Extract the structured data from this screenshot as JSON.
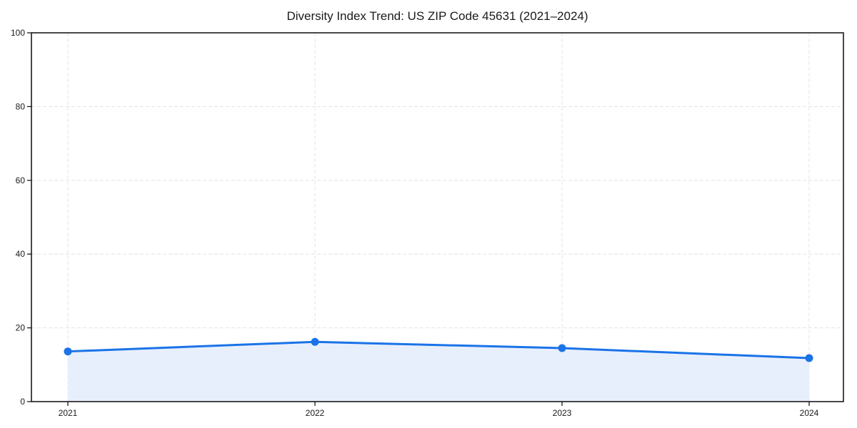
{
  "page": {
    "background": "#ffffff"
  },
  "chart_data": {
    "type": "area",
    "title": "Diversity Index Trend: US ZIP Code 45631 (2021–2024)",
    "x": [
      "2021",
      "2022",
      "2023",
      "2024"
    ],
    "values": [
      13.6,
      16.2,
      14.5,
      11.8
    ],
    "xlabel": "",
    "ylabel": "",
    "ylim": [
      0,
      100
    ],
    "yticks": [
      0,
      20,
      40,
      60,
      80,
      100
    ],
    "grid": {
      "style": "dashed",
      "horizontal": true,
      "vertical": true
    },
    "legend": "none",
    "markers": true,
    "colors": {
      "line": "#1a73e8",
      "marker": "#1a73e8",
      "fill": "#e8effc",
      "grid": "#e6e6e6",
      "axis": "#1a1a1a",
      "text": "#1a1a1a",
      "background": "#ffffff"
    }
  }
}
